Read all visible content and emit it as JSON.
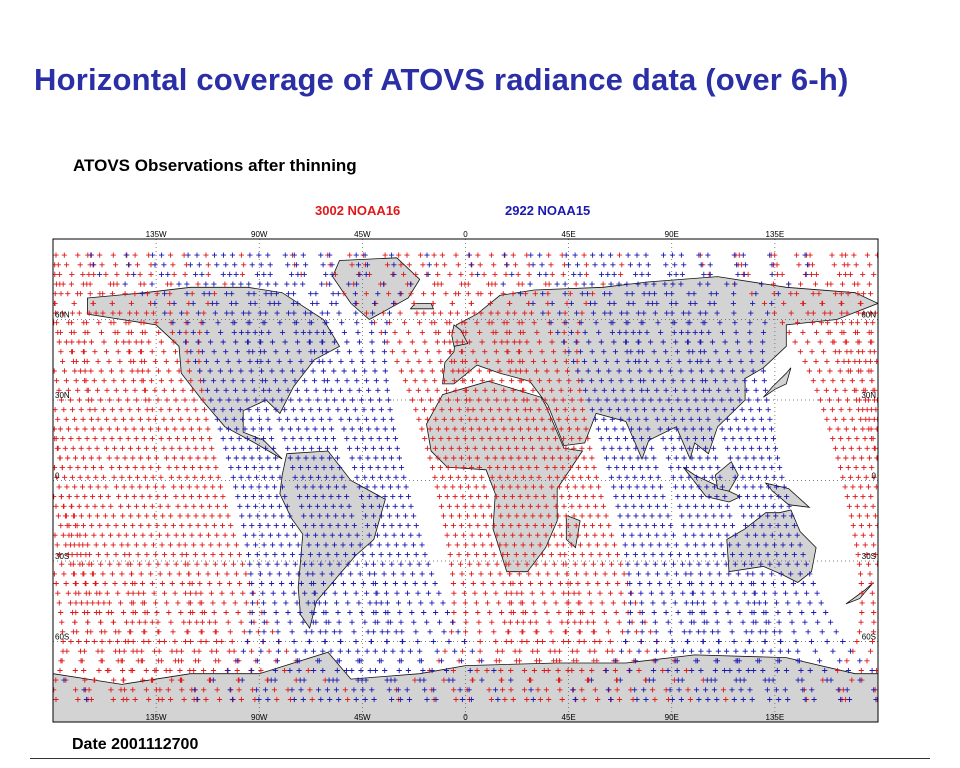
{
  "slide": {
    "title": "Horizontal coverage of ATOVS radiance data (over 6-h)"
  },
  "plot": {
    "title": "ATOVS Observations after thinning",
    "date_label": "Date 2001112700"
  },
  "legend": {
    "noaa16": {
      "count": "3002",
      "name": "NOAA16",
      "color": "#e01818"
    },
    "noaa15": {
      "count": "2922",
      "name": "NOAA15",
      "color": "#1a1ab0"
    }
  },
  "map": {
    "projection": "equirectangular",
    "lon_range": [
      -180,
      180
    ],
    "lat_range": [
      -90,
      90
    ],
    "land_color": "#d3d3d3",
    "grid": "dotted",
    "top_lon_ticks": [
      "135W",
      "90W",
      "45W",
      "0",
      "45E",
      "90E",
      "135E"
    ],
    "bottom_lon_ticks": [
      "135W",
      "90W",
      "45W",
      "0",
      "45E",
      "90E",
      "135E"
    ],
    "left_lat_ticks": [
      "60N",
      "30N",
      "0",
      "30S",
      "60S"
    ],
    "right_lat_ticks": [
      "60N",
      "30N",
      "0",
      "30S",
      "60S"
    ]
  },
  "chart_data": {
    "type": "scatter",
    "marker": "plus",
    "series": [
      {
        "name": "NOAA16",
        "count": 3002,
        "color": "#e01818",
        "swaths": [
          {
            "lon_center_at_equator": -167,
            "width_deg": 22
          },
          {
            "lon_center_at_equator": -142,
            "width_deg": 22
          },
          {
            "lon_center_at_equator": -2,
            "width_deg": 22
          },
          {
            "lon_center_at_equator": 23,
            "width_deg": 22
          },
          {
            "lon_center_at_equator": 48,
            "width_deg": 22
          },
          {
            "lon_center_at_equator": -117,
            "width_deg": 22
          },
          {
            "lon_center_at_equator": 176,
            "width_deg": 22
          }
        ]
      },
      {
        "name": "NOAA15",
        "count": 2922,
        "color": "#1a1ab0",
        "swaths": [
          {
            "lon_center_at_equator": -90,
            "width_deg": 22
          },
          {
            "lon_center_at_equator": -63,
            "width_deg": 22
          },
          {
            "lon_center_at_equator": -36,
            "width_deg": 22
          },
          {
            "lon_center_at_equator": 75,
            "width_deg": 22
          },
          {
            "lon_center_at_equator": 102,
            "width_deg": 22
          },
          {
            "lon_center_at_equator": 129,
            "width_deg": 22
          }
        ]
      }
    ],
    "orbit_tilt_deg_per_lat": -0.28
  }
}
